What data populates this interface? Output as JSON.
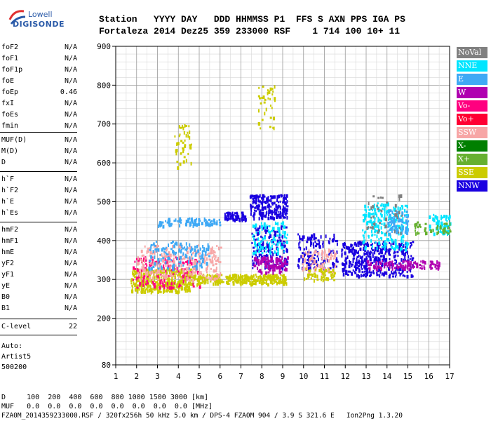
{
  "logo": {
    "line1": "Lowell",
    "line2": "DIGISONDE"
  },
  "header": {
    "labels": "Station   YYYY DAY   DDD HHMMSS P1  FFS S AXN PPS IGA PS",
    "values": "Fortaleza 2014 Dez25 359 233000 RSF    1 714 100 10+ 11"
  },
  "params": [
    {
      "k": "foF2",
      "v": "N/A"
    },
    {
      "k": "foF1",
      "v": "N/A"
    },
    {
      "k": "foF1p",
      "v": "N/A"
    },
    {
      "k": "foE",
      "v": "N/A"
    },
    {
      "k": "foEp",
      "v": "0.46"
    },
    {
      "k": "fxI",
      "v": "N/A"
    },
    {
      "k": "foEs",
      "v": "N/A"
    },
    {
      "k": "fmin",
      "v": "N/A"
    },
    {
      "k": "MUF(D)",
      "v": "N/A"
    },
    {
      "k": "M(D)",
      "v": "N/A"
    },
    {
      "k": "D",
      "v": "N/A"
    },
    {
      "k": "h`F",
      "v": "N/A"
    },
    {
      "k": "h`F2",
      "v": "N/A"
    },
    {
      "k": "h`E",
      "v": "N/A"
    },
    {
      "k": "h`Es",
      "v": "N/A"
    },
    {
      "k": "hmF2",
      "v": "N/A"
    },
    {
      "k": "hmF1",
      "v": "N/A"
    },
    {
      "k": "hmE",
      "v": "N/A"
    },
    {
      "k": "yF2",
      "v": "N/A"
    },
    {
      "k": "yF1",
      "v": "N/A"
    },
    {
      "k": "yE",
      "v": "N/A"
    },
    {
      "k": "B0",
      "v": "N/A"
    },
    {
      "k": "B1",
      "v": "N/A"
    },
    {
      "k": "C-level",
      "v": "22"
    }
  ],
  "auto": {
    "l1": "Auto:",
    "l2": "Artist5",
    "l3": "500200"
  },
  "legend": [
    {
      "label": "NoVal",
      "color": "#808080"
    },
    {
      "label": "NNE",
      "color": "#00e5ff"
    },
    {
      "label": "E",
      "color": "#3fa9f5"
    },
    {
      "label": "W",
      "color": "#b000b0"
    },
    {
      "label": "Vo-",
      "color": "#ff007f"
    },
    {
      "label": "Vo+",
      "color": "#ff0033"
    },
    {
      "label": "SSW",
      "color": "#f7a6a6"
    },
    {
      "label": "X-",
      "color": "#007f00"
    },
    {
      "label": "X+",
      "color": "#66b030"
    },
    {
      "label": "SSE",
      "color": "#cccc00"
    },
    {
      "label": "NNW",
      "color": "#1a00e0"
    }
  ],
  "footer": {
    "d_line": "D     100  200  400  600  800 1000 1500 3000 [km]",
    "muf_line": "MUF   0.0  0.0  0.0  0.0  0.0  0.0  0.0  0.0 [MHz]",
    "file_line": "FZA0M_2014359233000.RSF / 320fx256h 50 kHz 5.0 km / DPS-4 FZA0M 904 / 3.9 S 321.6 E   Ion2Png 1.3.20"
  },
  "chart_data": {
    "type": "scatter",
    "x_ticks": [
      "1",
      "2",
      "3",
      "4",
      "5",
      "6",
      "7",
      "8",
      "9",
      "10",
      "11",
      "12",
      "13",
      "14",
      "15",
      "16",
      "17"
    ],
    "y_ticks": [
      "80",
      "200",
      "300",
      "400",
      "500",
      "600",
      "700",
      "800",
      "900"
    ],
    "xlim": [
      1,
      17
    ],
    "ylim": [
      80,
      900
    ],
    "grid": true,
    "legend_position": "right",
    "clusters": [
      {
        "color": "#cccc00",
        "x": [
          1.7,
          4.6
        ],
        "y": [
          270,
          330
        ],
        "n": 420
      },
      {
        "color": "#cccc00",
        "x": [
          4.6,
          9.2
        ],
        "y": [
          290,
          315
        ],
        "n": 300
      },
      {
        "color": "#ff007f",
        "x": [
          1.8,
          5.0
        ],
        "y": [
          280,
          360
        ],
        "n": 150
      },
      {
        "color": "#f7a6a6",
        "x": [
          2.0,
          6.0
        ],
        "y": [
          300,
          390
        ],
        "n": 260
      },
      {
        "color": "#3fa9f5",
        "x": [
          2.5,
          5.5
        ],
        "y": [
          330,
          400
        ],
        "n": 140
      },
      {
        "color": "#3fa9f5",
        "x": [
          3.0,
          6.0
        ],
        "y": [
          440,
          460
        ],
        "n": 90
      },
      {
        "color": "#1a00e0",
        "x": [
          6.2,
          7.2
        ],
        "y": [
          455,
          475
        ],
        "n": 70
      },
      {
        "color": "#1a00e0",
        "x": [
          7.4,
          9.2
        ],
        "y": [
          460,
          520
        ],
        "n": 200
      },
      {
        "color": "#1a00e0",
        "x": [
          7.5,
          9.2
        ],
        "y": [
          330,
          440
        ],
        "n": 170
      },
      {
        "color": "#b000b0",
        "x": [
          7.6,
          9.2
        ],
        "y": [
          320,
          360
        ],
        "n": 110
      },
      {
        "color": "#00e5ff",
        "x": [
          7.5,
          9.2
        ],
        "y": [
          370,
          450
        ],
        "n": 90
      },
      {
        "color": "#cccc00",
        "x": [
          3.8,
          4.6
        ],
        "y": [
          590,
          700
        ],
        "n": 45
      },
      {
        "color": "#cccc00",
        "x": [
          7.8,
          8.6
        ],
        "y": [
          690,
          800
        ],
        "n": 35
      },
      {
        "color": "#1a00e0",
        "x": [
          9.7,
          11.6
        ],
        "y": [
          330,
          420
        ],
        "n": 130
      },
      {
        "color": "#f7a6a6",
        "x": [
          9.9,
          11.5
        ],
        "y": [
          320,
          380
        ],
        "n": 80
      },
      {
        "color": "#cccc00",
        "x": [
          10.0,
          11.5
        ],
        "y": [
          300,
          330
        ],
        "n": 50
      },
      {
        "color": "#1a00e0",
        "x": [
          11.8,
          15.2
        ],
        "y": [
          310,
          400
        ],
        "n": 380
      },
      {
        "color": "#00e5ff",
        "x": [
          12.8,
          15.0
        ],
        "y": [
          380,
          500
        ],
        "n": 220
      },
      {
        "color": "#b000b0",
        "x": [
          13.0,
          16.5
        ],
        "y": [
          330,
          350
        ],
        "n": 120
      },
      {
        "color": "#3fa9f5",
        "x": [
          14.0,
          15.0
        ],
        "y": [
          420,
          480
        ],
        "n": 70
      },
      {
        "color": "#00e5ff",
        "x": [
          16.0,
          17.0
        ],
        "y": [
          420,
          470
        ],
        "n": 70
      },
      {
        "color": "#66b030",
        "x": [
          15.3,
          17.0
        ],
        "y": [
          420,
          450
        ],
        "n": 45
      },
      {
        "color": "#808080",
        "x": [
          12.9,
          14.7
        ],
        "y": [
          420,
          520
        ],
        "n": 40
      }
    ]
  }
}
